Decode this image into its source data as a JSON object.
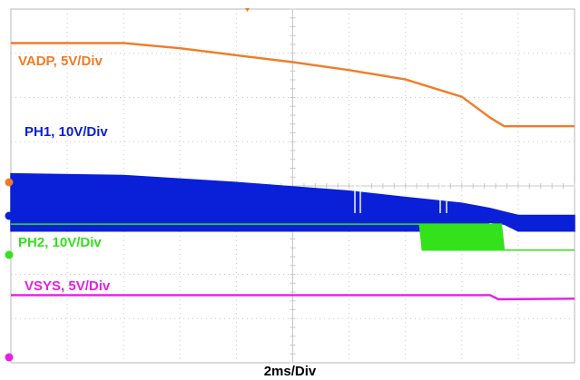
{
  "chart_data": {
    "type": "line",
    "title": "",
    "xlabel": "2ms/Div",
    "ylabel": "",
    "x_unit": "ms",
    "x_divisions": 10,
    "y_divisions": 8,
    "xlim": [
      0,
      20
    ],
    "grid": true,
    "series": [
      {
        "name": "VADP, 5V/Div",
        "color": "#f07c28",
        "x": [
          0,
          4,
          6,
          8,
          10,
          12,
          14,
          16,
          17,
          17.5,
          20
        ],
        "y": [
          0.0,
          0.0,
          -0.15,
          -0.35,
          -0.55,
          -0.78,
          -1.05,
          -1.55,
          -2.15,
          -2.4,
          -2.4
        ],
        "note_units": "divisions relative to initial level"
      },
      {
        "name": "PH1, 10V/Div",
        "color": "#0a1fd8",
        "x": [
          0,
          4,
          8,
          12,
          14,
          16,
          17,
          17.5,
          18,
          20
        ],
        "upper": [
          0.9,
          0.85,
          0.65,
          0.4,
          0.22,
          0.05,
          -0.1,
          -0.2,
          -0.3,
          -0.3
        ],
        "lower": [
          -0.75,
          -0.75,
          -0.75,
          -0.75,
          -0.75,
          -0.75,
          -0.5,
          -0.55,
          -0.75,
          -0.75
        ],
        "note_units": "switching envelope, divisions"
      },
      {
        "name": "PH2, 10V/Div",
        "color": "#33e21a",
        "x": [
          0,
          14.5,
          14.6,
          17.4,
          17.5,
          20
        ],
        "upper": [
          0,
          0,
          0,
          0,
          -0.75,
          -0.75
        ],
        "lower": [
          0,
          0,
          -0.75,
          -0.75,
          -0.75,
          -0.75
        ],
        "note_units": "divisions"
      },
      {
        "name": "VSYS, 5V/Div",
        "color": "#e61ee6",
        "x": [
          0,
          17,
          17.3,
          20
        ],
        "y": [
          0,
          0,
          -0.12,
          -0.1
        ],
        "note_units": "divisions"
      }
    ]
  }
}
